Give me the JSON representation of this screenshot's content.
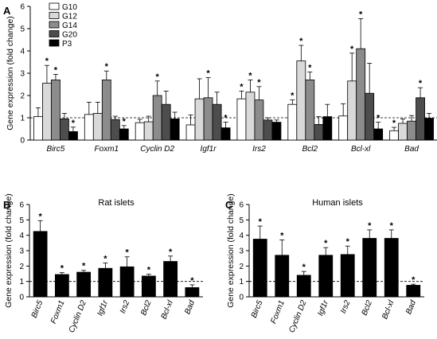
{
  "chart_data": [
    {
      "id": "A",
      "type": "bar",
      "panel_label": "A",
      "title": "",
      "ylabel": "Gene expression (fold change)",
      "ylim": [
        0,
        6
      ],
      "yticks": [
        0,
        1,
        2,
        3,
        4,
        5,
        6
      ],
      "reference_line": 1,
      "legend": "top-left",
      "categories": [
        "Birc5",
        "Foxm1",
        "Cyclin D2",
        "Igf1r",
        "Irs2",
        "Bcl2",
        "Bcl-xl",
        "Bad"
      ],
      "series": [
        {
          "name": "G10",
          "color": "#ffffff",
          "values": [
            1.05,
            1.15,
            0.78,
            0.68,
            1.85,
            1.6,
            1.08,
            0.42
          ],
          "errors": [
            0.4,
            0.55,
            0.15,
            0.45,
            0.35,
            0.2,
            0.55,
            0.15
          ],
          "significant": [
            false,
            false,
            false,
            false,
            true,
            true,
            false,
            true
          ]
        },
        {
          "name": "G12",
          "color": "#d9d9d9",
          "values": [
            2.55,
            1.2,
            0.82,
            1.85,
            2.15,
            3.55,
            2.65,
            0.75
          ],
          "errors": [
            0.8,
            0.5,
            0.25,
            0.9,
            0.55,
            0.7,
            1.25,
            0.2
          ],
          "significant": [
            true,
            false,
            false,
            false,
            true,
            true,
            true,
            false
          ]
        },
        {
          "name": "G14",
          "color": "#8c8c8c",
          "values": [
            2.7,
            2.7,
            2.0,
            1.9,
            1.8,
            2.7,
            4.1,
            0.85
          ],
          "errors": [
            0.25,
            0.4,
            0.65,
            0.9,
            0.6,
            0.35,
            1.35,
            0.25
          ],
          "significant": [
            true,
            true,
            true,
            true,
            true,
            true,
            true,
            false
          ]
        },
        {
          "name": "G20",
          "color": "#4d4d4d",
          "values": [
            0.95,
            0.92,
            1.6,
            1.6,
            0.9,
            0.7,
            2.1,
            1.9
          ],
          "errors": [
            0.25,
            0.15,
            0.6,
            0.55,
            0.1,
            0.35,
            1.35,
            0.45
          ],
          "significant": [
            false,
            false,
            false,
            false,
            false,
            false,
            false,
            true
          ]
        },
        {
          "name": "P3",
          "color": "#000000",
          "values": [
            0.38,
            0.5,
            0.95,
            0.55,
            0.8,
            1.05,
            0.5,
            0.98
          ],
          "errors": [
            0.2,
            0.15,
            0.3,
            0.25,
            0.1,
            0.55,
            0.3,
            0.22
          ],
          "significant": [
            true,
            true,
            false,
            true,
            false,
            false,
            true,
            false
          ]
        }
      ]
    },
    {
      "id": "B",
      "type": "bar",
      "panel_label": "B",
      "title": "Rat islets",
      "ylabel": "Gene expression (fold change)",
      "ylim": [
        0,
        6
      ],
      "yticks": [
        0,
        1,
        2,
        3,
        4,
        5,
        6
      ],
      "reference_line": 1,
      "categories": [
        "Birc5",
        "Foxm1",
        "Cyclin D2",
        "Igf1r",
        "Irs2",
        "Bcl2",
        "Bcl-xl",
        "Bad"
      ],
      "series": [
        {
          "name": "",
          "color": "#000000",
          "values": [
            4.25,
            1.45,
            1.6,
            1.85,
            1.95,
            1.35,
            2.3,
            0.6
          ],
          "errors": [
            0.7,
            0.12,
            0.12,
            0.35,
            0.65,
            0.12,
            0.35,
            0.18
          ],
          "significant": [
            true,
            true,
            true,
            true,
            true,
            true,
            true,
            true
          ]
        }
      ]
    },
    {
      "id": "C",
      "type": "bar",
      "panel_label": "C",
      "title": "Human islets",
      "ylabel": "Gene expression (fold change)",
      "ylim": [
        0,
        6
      ],
      "yticks": [
        0,
        1,
        2,
        3,
        4,
        5,
        6
      ],
      "reference_line": 1,
      "categories": [
        "Birc5",
        "Foxm1",
        "Cyclin D2",
        "Igf1r",
        "Irs2",
        "Bcl2",
        "Bcl-xl",
        "Bad"
      ],
      "series": [
        {
          "name": "",
          "color": "#000000",
          "values": [
            3.75,
            2.7,
            1.4,
            2.7,
            2.75,
            3.8,
            3.8,
            0.75
          ],
          "errors": [
            0.85,
            1.0,
            0.25,
            0.5,
            0.55,
            0.55,
            0.55,
            0.07
          ],
          "significant": [
            true,
            true,
            true,
            true,
            true,
            true,
            true,
            true
          ]
        }
      ]
    }
  ],
  "significance_marker": "*"
}
